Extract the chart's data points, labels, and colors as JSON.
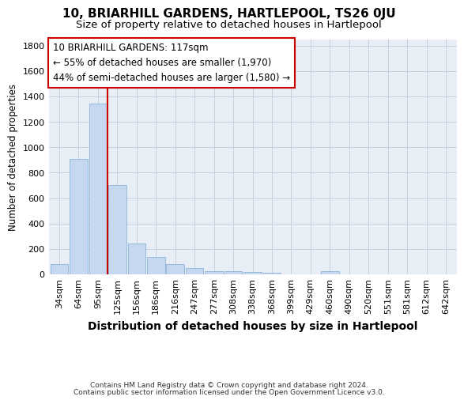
{
  "title": "10, BRIARHILL GARDENS, HARTLEPOOL, TS26 0JU",
  "subtitle": "Size of property relative to detached houses in Hartlepool",
  "xlabel": "Distribution of detached houses by size in Hartlepool",
  "ylabel": "Number of detached properties",
  "footer_line1": "Contains HM Land Registry data © Crown copyright and database right 2024.",
  "footer_line2": "Contains public sector information licensed under the Open Government Licence v3.0.",
  "categories": [
    "34sqm",
    "64sqm",
    "95sqm",
    "125sqm",
    "156sqm",
    "186sqm",
    "216sqm",
    "247sqm",
    "277sqm",
    "308sqm",
    "338sqm",
    "368sqm",
    "399sqm",
    "429sqm",
    "460sqm",
    "490sqm",
    "520sqm",
    "551sqm",
    "581sqm",
    "612sqm",
    "642sqm"
  ],
  "values": [
    80,
    910,
    1345,
    700,
    245,
    135,
    80,
    50,
    25,
    25,
    18,
    15,
    0,
    0,
    25,
    0,
    0,
    0,
    0,
    0,
    0
  ],
  "bar_color": "#c5d8f0",
  "bar_edge_color": "#8ab4d8",
  "vline_x_index": 3.0,
  "vline_color": "#cc0000",
  "annotation_line1": "10 BRIARHILL GARDENS: 117sqm",
  "annotation_line2": "← 55% of detached houses are smaller (1,970)",
  "annotation_line3": "44% of semi-detached houses are larger (1,580) →",
  "annotation_box_color": "#cc0000",
  "annotation_box_bg": "#ffffff",
  "ylim": [
    0,
    1850
  ],
  "yticks": [
    0,
    200,
    400,
    600,
    800,
    1000,
    1200,
    1400,
    1600,
    1800
  ],
  "grid_color": "#c8d0dc",
  "bg_color": "#e8eef5",
  "title_fontsize": 11,
  "subtitle_fontsize": 9.5,
  "xlabel_fontsize": 10,
  "ylabel_fontsize": 8.5,
  "tick_fontsize": 8,
  "annot_fontsize": 8.5,
  "footer_fontsize": 6.5
}
